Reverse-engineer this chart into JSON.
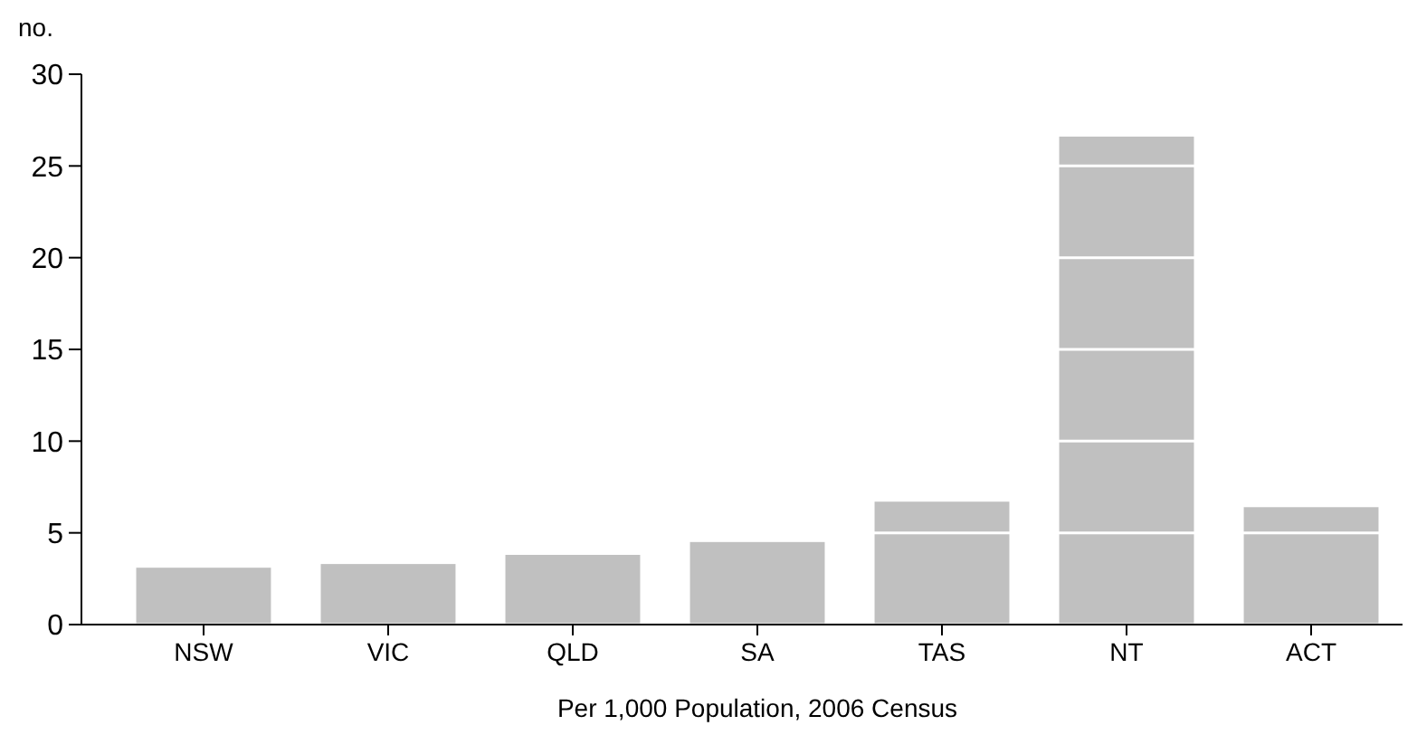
{
  "chart_data": {
    "type": "bar",
    "xlabel": "Per 1,000 Population, 2006 Census",
    "ylabel": "no.",
    "categories": [
      "NSW",
      "VIC",
      "QLD",
      "SA",
      "TAS",
      "NT",
      "ACT"
    ],
    "values": [
      3.1,
      3.3,
      3.8,
      4.5,
      6.7,
      26.6,
      6.4
    ],
    "color": "#c0c0c0",
    "ylim": [
      0,
      30
    ],
    "yticks": [
      0,
      5,
      10,
      15,
      20,
      25,
      30
    ],
    "grid": "y"
  }
}
